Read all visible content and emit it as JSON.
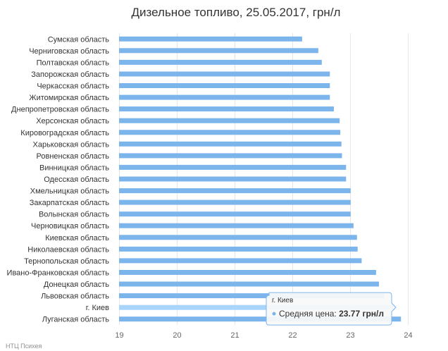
{
  "chart_data": {
    "type": "bar",
    "orientation": "horizontal",
    "title": "Дизельное топливо, 25.05.2017, грн/л",
    "categories": [
      "Сумская область",
      "Черниговская область",
      "Полтавская область",
      "Запорожская область",
      "Черкасская область",
      "Житомирская область",
      "Днепропетровская область",
      "Херсонская область",
      "Кировоградская область",
      "Харьковская область",
      "Ровненская область",
      "Винницкая область",
      "Одесская область",
      "Хмельницкая область",
      "Закарпатская область",
      "Волынская область",
      "Черновицкая область",
      "Киевская область",
      "Николаевская область",
      "Тернопольская область",
      "Ивано-Франковская область",
      "Донецкая область",
      "Львовская область",
      "г. Киев",
      "Луганская область"
    ],
    "series": [
      {
        "values": [
          22.17,
          22.45,
          22.51,
          22.65,
          22.65,
          22.65,
          22.72,
          22.82,
          22.83,
          22.85,
          22.86,
          22.93,
          22.93,
          23.01,
          23.01,
          23.01,
          23.06,
          23.12,
          23.13,
          23.2,
          23.45,
          23.5,
          23.59,
          23.77,
          23.88
        ]
      }
    ],
    "xlim": [
      19,
      24
    ],
    "xticks": [
      "19",
      "20",
      "21",
      "22",
      "23",
      "24"
    ],
    "grid": true,
    "legend": "none",
    "highlighted_category": "г. Киев"
  },
  "tooltip": {
    "city": "г. Киев",
    "label": "Средняя цена:",
    "value": "23.77 грн/л"
  },
  "credit": "НТЦ Психея",
  "colors": {
    "bar": "#7cb5ec",
    "bar_highlight": "#a9d4fb",
    "grid": "#e6e6e6",
    "tooltip_border": "#7cb5ec"
  }
}
